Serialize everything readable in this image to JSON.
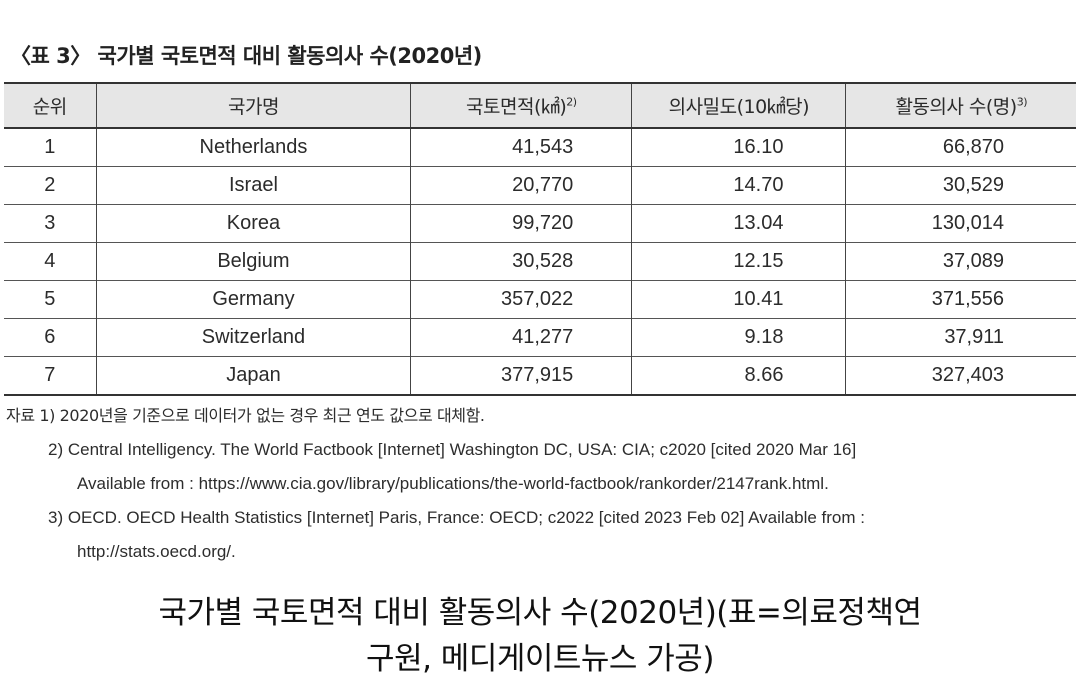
{
  "table_caption": "〈표 3〉 국가별 국토면적 대비 활동의사 수(2020년)",
  "table": {
    "headers": {
      "rank": "순위",
      "country": "국가명",
      "area": "국토면적(㎢)",
      "area_sup": "2)",
      "density": "의사밀도(10㎢당)",
      "doctors": "활동의사 수(명)",
      "doctors_sup": "3)"
    },
    "rows": [
      {
        "rank": "1",
        "country": "Netherlands",
        "area": "41,543",
        "density": "16.10",
        "doctors": "66,870"
      },
      {
        "rank": "2",
        "country": "Israel",
        "area": "20,770",
        "density": "14.70",
        "doctors": "30,529"
      },
      {
        "rank": "3",
        "country": "Korea",
        "area": "99,720",
        "density": "13.04",
        "doctors": "130,014"
      },
      {
        "rank": "4",
        "country": "Belgium",
        "area": "30,528",
        "density": "12.15",
        "doctors": "37,089"
      },
      {
        "rank": "5",
        "country": "Germany",
        "area": "357,022",
        "density": "10.41",
        "doctors": "371,556"
      },
      {
        "rank": "6",
        "country": "Switzerland",
        "area": "41,277",
        "density": "9.18",
        "doctors": "37,911"
      },
      {
        "rank": "7",
        "country": "Japan",
        "area": "377,915",
        "density": "8.66",
        "doctors": "327,403"
      }
    ]
  },
  "notes": {
    "note1": "자료 1) 2020년을 기준으로 데이터가 없는 경우 최근 연도 값으로 대체함.",
    "note2_line1": "2) Central Intelligency. The World Factbook [Internet] Washington DC, USA: CIA; c2020 [cited 2020 Mar 16]",
    "note2_line2": "Available from : https://www.cia.gov/library/publications/the-world-factbook/rankorder/2147rank.html.",
    "note3_line1": "3) OECD. OECD Health Statistics [Internet] Paris, France: OECD; c2022 [cited 2023 Feb 02] Available from :",
    "note3_line2": "http://stats.oecd.org/."
  },
  "caption": {
    "line1": "국가별 국토면적 대비 활동의사 수(2020년)(표=의료정책연",
    "line2": "구원, 메디게이트뉴스 가공)"
  }
}
